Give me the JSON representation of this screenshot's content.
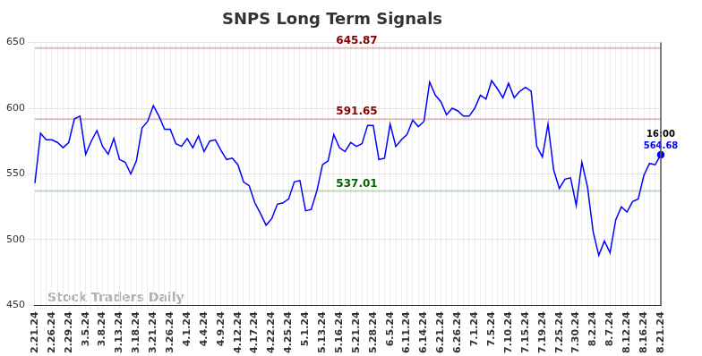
{
  "chart_data": {
    "type": "line",
    "title": "SNPS Long Term Signals",
    "watermark": "Stock Traders Daily",
    "categories": [
      "2.21.24",
      null,
      null,
      "2.26.24",
      null,
      null,
      "2.29.24",
      null,
      null,
      "3.5.24",
      null,
      null,
      "3.8.24",
      null,
      null,
      "3.13.24",
      null,
      null,
      "3.18.24",
      null,
      null,
      "3.21.24",
      null,
      null,
      "3.26.24",
      null,
      null,
      "4.1.24",
      null,
      null,
      "4.4.24",
      null,
      null,
      "4.9.24",
      null,
      null,
      "4.12.24",
      null,
      null,
      "4.17.24",
      null,
      null,
      "4.22.24",
      null,
      null,
      "4.25.24",
      null,
      null,
      "5.1.24",
      null,
      null,
      "5.13.24",
      null,
      null,
      "5.16.24",
      null,
      null,
      "5.21.24",
      null,
      null,
      "5.28.24",
      null,
      null,
      "6.5.24",
      null,
      null,
      "6.11.24",
      null,
      null,
      "6.14.24",
      null,
      null,
      "6.21.24",
      null,
      null,
      "6.26.24",
      null,
      null,
      "7.1.24",
      null,
      null,
      "7.5.24",
      null,
      null,
      "7.10.24",
      null,
      null,
      "7.15.24",
      null,
      null,
      "7.19.24",
      null,
      null,
      "7.25.24",
      null,
      null,
      "7.30.24",
      null,
      null,
      "8.2.24",
      null,
      null,
      "8.7.24",
      null,
      null,
      "8.12.24",
      null,
      null,
      "8.16.24",
      null,
      null,
      "8.21.24"
    ],
    "values": [
      543,
      581,
      576,
      576,
      574,
      570,
      574,
      592,
      594,
      565,
      575,
      583,
      571,
      565,
      577,
      561,
      559,
      550,
      560,
      585,
      590,
      602,
      594,
      584,
      584,
      573,
      571,
      577,
      570,
      579,
      567,
      575,
      576,
      568,
      561,
      562,
      557,
      544,
      541,
      528,
      520,
      511,
      516,
      527,
      528,
      531,
      544,
      545,
      522,
      523,
      537,
      557,
      560,
      580,
      570,
      567,
      574,
      571,
      573,
      587,
      587,
      561,
      562,
      588,
      571,
      576,
      580,
      591,
      586,
      590,
      620,
      610,
      605,
      595,
      600,
      598,
      594,
      594,
      600,
      610,
      607,
      621,
      615,
      608,
      619,
      608,
      613,
      616,
      613,
      571,
      563,
      588,
      553,
      539,
      546,
      547,
      526,
      559,
      540,
      506,
      488,
      499,
      490,
      515,
      525,
      521,
      529,
      531,
      549,
      558,
      557,
      564.68
    ],
    "color": "#0000ff",
    "ylim": [
      450,
      650
    ],
    "yticks": [
      450,
      500,
      550,
      600,
      650
    ],
    "grid": true,
    "annotations": {
      "lines": [
        {
          "value": 645.87,
          "color": "#8b0000"
        },
        {
          "value": 591.65,
          "color": "#8b0000"
        },
        {
          "value": 537.01,
          "color": "#006400"
        }
      ],
      "last_point": {
        "label": "16:00"
      }
    }
  }
}
